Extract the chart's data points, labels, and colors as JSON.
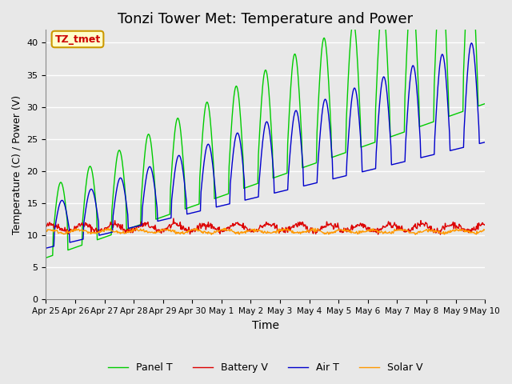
{
  "title": "Tonzi Tower Met: Temperature and Power",
  "xlabel": "Time",
  "ylabel": "Temperature (C) / Power (V)",
  "annotation": "TZ_tmet",
  "ylim": [
    0,
    42
  ],
  "yticks": [
    0,
    5,
    10,
    15,
    20,
    25,
    30,
    35,
    40
  ],
  "x_labels": [
    "Apr 25",
    "Apr 26",
    "Apr 27",
    "Apr 28",
    "Apr 29",
    "Apr 30",
    "May 1",
    "May 2",
    "May 3",
    "May 4",
    "May 5",
    "May 6",
    "May 7",
    "May 8",
    "May 9",
    "May 10"
  ],
  "legend": [
    "Panel T",
    "Battery V",
    "Air T",
    "Solar V"
  ],
  "colors": {
    "panel_t": "#00CC00",
    "battery_v": "#DD0000",
    "air_t": "#0000CC",
    "solar_v": "#FF9900"
  },
  "background_color": "#E8E8E8",
  "title_fontsize": 13,
  "annotation_bg": "#FFFFCC",
  "annotation_fg": "#CC0000",
  "annotation_edge": "#CC9900"
}
